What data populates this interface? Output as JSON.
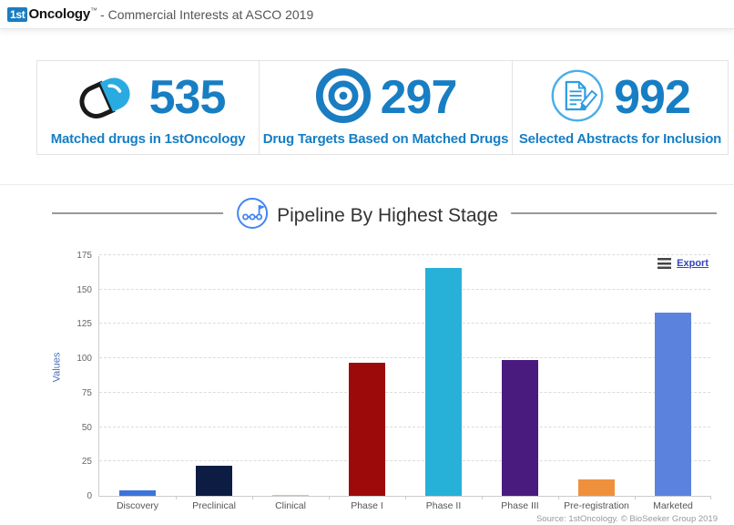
{
  "header": {
    "logo_badge": "1st",
    "logo_text": "Oncology",
    "trademark": "™",
    "subtitle": "- Commercial Interests at ASCO 2019"
  },
  "stats": [
    {
      "icon": "pill-icon",
      "value": "535",
      "label": "Matched drugs in 1stOncology"
    },
    {
      "icon": "target-icon",
      "value": "297",
      "label": "Drug Targets Based on Matched Drugs"
    },
    {
      "icon": "document-pencil-icon",
      "value": "992",
      "label": "Selected Abstracts for Inclusion"
    }
  ],
  "section": {
    "icon": "pipeline-stages-icon",
    "title": "Pipeline By Highest Stage"
  },
  "chart": {
    "export_label": "Export",
    "source_note": "Source: 1stOncology. © BioSeeker Group 2019"
  },
  "chart_data": {
    "type": "bar",
    "title": "Pipeline By Highest Stage",
    "categories": [
      "Discovery",
      "Preclinical",
      "Clinical",
      "Phase I",
      "Phase II",
      "Phase III",
      "Pre-registration",
      "Marketed"
    ],
    "values": [
      4,
      22,
      1,
      97,
      166,
      99,
      12,
      133
    ],
    "bar_colors": [
      "#3b74db",
      "#0c1c42",
      "#b8da8a",
      "#9c0a0a",
      "#27b1d8",
      "#4a1b7e",
      "#ef913c",
      "#5b82dd"
    ],
    "xlabel": "",
    "ylabel": "Values",
    "ylim": [
      0,
      175
    ],
    "yticks": [
      0,
      25,
      50,
      75,
      100,
      125,
      150,
      175
    ],
    "grid": true,
    "legend": false
  },
  "colors": {
    "accent_blue": "#177ec4",
    "logo_blue": "#1a7dc2",
    "link_blue": "#3544c2",
    "icon_light_blue": "#29abe2",
    "title_icon_blue": "#4285f4"
  }
}
